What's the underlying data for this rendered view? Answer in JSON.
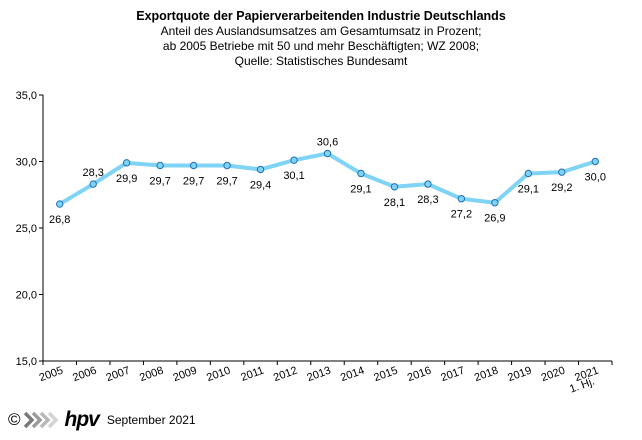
{
  "title": "Exportquote der Papierverarbeitenden Industrie Deutschlands",
  "subtitle_lines": [
    "Anteil des Auslandsumsatzes am Gesamtumsatz in Prozent;",
    "ab 2005 Betriebe mit 50 und mehr Beschäftigten; WZ 2008;",
    "Quelle: Statistisches Bundesamt"
  ],
  "footer": {
    "copyright_symbol": "©",
    "logo_text": "hpv",
    "date": "September 2021"
  },
  "colors": {
    "line": "#7fd3f5",
    "marker_fill": "#7fd3f5",
    "marker_stroke": "#1f6fb5",
    "axis": "#000000",
    "logo": "#000000"
  },
  "chart_data": {
    "type": "line",
    "title": "Exportquote der Papierverarbeitenden Industrie Deutschlands",
    "xlabel": "",
    "ylabel": "",
    "categories": [
      "2005",
      "2006",
      "2007",
      "2008",
      "2009",
      "2010",
      "2011",
      "2012",
      "2013",
      "2014",
      "2015",
      "2016",
      "2017",
      "2018",
      "2019",
      "2020",
      "2021"
    ],
    "category_sublabels": [
      "",
      "",
      "",
      "",
      "",
      "",
      "",
      "",
      "",
      "",
      "",
      "",
      "",
      "",
      "",
      "",
      "1. Hj."
    ],
    "values": [
      26.8,
      28.3,
      29.9,
      29.7,
      29.7,
      29.7,
      29.4,
      30.1,
      30.6,
      29.1,
      28.1,
      28.3,
      27.2,
      26.9,
      29.1,
      29.2,
      30.0
    ],
    "value_labels": [
      "26,8",
      "28,3",
      "29,9",
      "29,7",
      "29,7",
      "29,7",
      "29,4",
      "30,1",
      "30,6",
      "29,1",
      "28,1",
      "28,3",
      "27,2",
      "26,9",
      "29,1",
      "29,2",
      "30,0"
    ],
    "label_position": [
      "below",
      "above",
      "below",
      "below",
      "below",
      "below",
      "below",
      "below",
      "above",
      "below",
      "below",
      "below",
      "below",
      "below",
      "below",
      "below",
      "below"
    ],
    "ylim": [
      15.0,
      35.0
    ],
    "yticks": [
      15.0,
      20.0,
      25.0,
      30.0,
      35.0
    ],
    "ytick_labels": [
      "15,0",
      "20,0",
      "25,0",
      "30,0",
      "35,0"
    ],
    "grid": false,
    "legend": "none"
  }
}
